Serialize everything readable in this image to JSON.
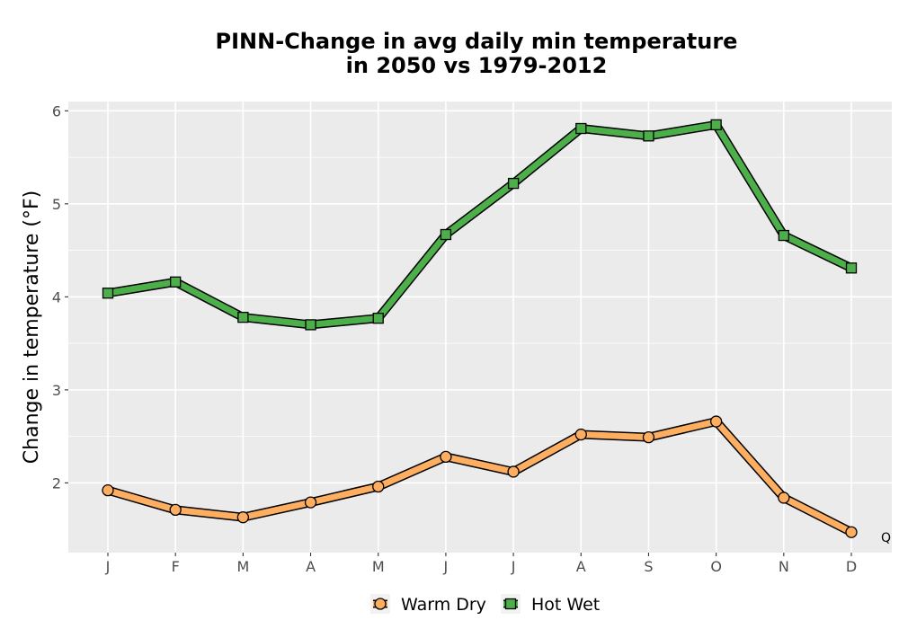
{
  "chart_data": {
    "type": "line",
    "title_line1": "PINN-Change in avg daily min temperature",
    "title_line2": "in 2050 vs 1979-2012",
    "xlabel": "",
    "ylabel": "Change in temperature (°F)",
    "categories": [
      "J",
      "F",
      "M",
      "A",
      "M",
      "J",
      "J",
      "A",
      "S",
      "O",
      "N",
      "D"
    ],
    "ylim": [
      1.25,
      6.1
    ],
    "yticks": [
      2,
      3,
      4,
      5,
      6
    ],
    "grid": true,
    "legend_position": "bottom",
    "series": [
      {
        "name": "Warm Dry",
        "marker": "circle",
        "color": "#fdae61",
        "values": [
          1.92,
          1.71,
          1.63,
          1.79,
          1.96,
          2.28,
          2.12,
          2.52,
          2.49,
          2.66,
          1.84,
          1.47
        ]
      },
      {
        "name": "Hot Wet",
        "marker": "square",
        "color": "#4daf4a",
        "values": [
          4.04,
          4.16,
          3.78,
          3.7,
          3.77,
          4.67,
          5.22,
          5.81,
          5.73,
          5.85,
          4.66,
          4.31
        ]
      }
    ],
    "corner_annotation": "Q"
  },
  "colors": {
    "panel": "#ebebeb",
    "grid": "#ffffff",
    "outline": "#000000"
  }
}
